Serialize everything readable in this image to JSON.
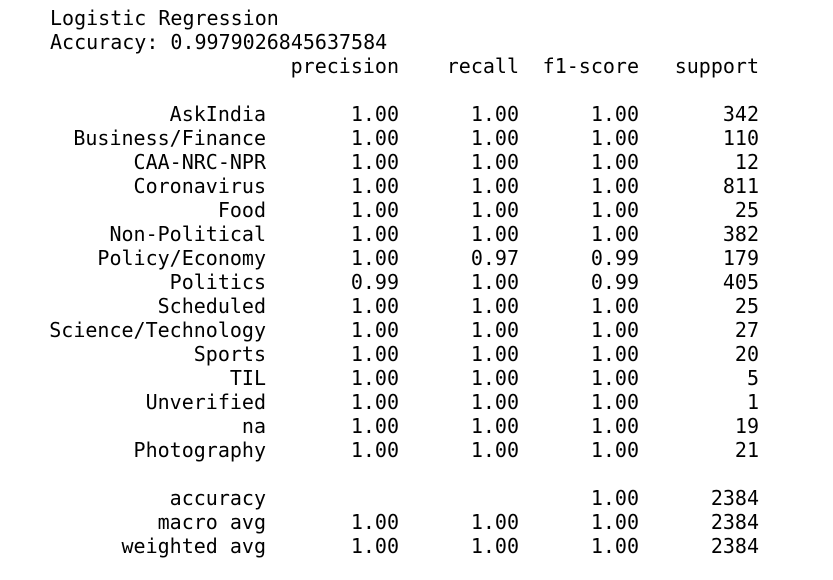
{
  "header": {
    "model_name": "Logistic Regression",
    "accuracy_line": "Accuracy: 0.9979026845637584"
  },
  "columns": {
    "precision": "precision",
    "recall": "recall",
    "f1": "f1-score",
    "support": "support"
  },
  "rows": [
    {
      "label": "AskIndia",
      "precision": "1.00",
      "recall": "1.00",
      "f1": "1.00",
      "support": "342"
    },
    {
      "label": "Business/Finance",
      "precision": "1.00",
      "recall": "1.00",
      "f1": "1.00",
      "support": "110"
    },
    {
      "label": "CAA-NRC-NPR",
      "precision": "1.00",
      "recall": "1.00",
      "f1": "1.00",
      "support": "12"
    },
    {
      "label": "Coronavirus",
      "precision": "1.00",
      "recall": "1.00",
      "f1": "1.00",
      "support": "811"
    },
    {
      "label": "Food",
      "precision": "1.00",
      "recall": "1.00",
      "f1": "1.00",
      "support": "25"
    },
    {
      "label": "Non-Political",
      "precision": "1.00",
      "recall": "1.00",
      "f1": "1.00",
      "support": "382"
    },
    {
      "label": "Policy/Economy",
      "precision": "1.00",
      "recall": "0.97",
      "f1": "0.99",
      "support": "179"
    },
    {
      "label": "Politics",
      "precision": "0.99",
      "recall": "1.00",
      "f1": "0.99",
      "support": "405"
    },
    {
      "label": "Scheduled",
      "precision": "1.00",
      "recall": "1.00",
      "f1": "1.00",
      "support": "25"
    },
    {
      "label": "Science/Technology",
      "precision": "1.00",
      "recall": "1.00",
      "f1": "1.00",
      "support": "27"
    },
    {
      "label": "Sports",
      "precision": "1.00",
      "recall": "1.00",
      "f1": "1.00",
      "support": "20"
    },
    {
      "label": "TIL",
      "precision": "1.00",
      "recall": "1.00",
      "f1": "1.00",
      "support": "5"
    },
    {
      "label": "Unverified",
      "precision": "1.00",
      "recall": "1.00",
      "f1": "1.00",
      "support": "1"
    },
    {
      "label": "na",
      "precision": "1.00",
      "recall": "1.00",
      "f1": "1.00",
      "support": "19"
    },
    {
      "label": "Photography",
      "precision": "1.00",
      "recall": "1.00",
      "f1": "1.00",
      "support": "21"
    }
  ],
  "summary": [
    {
      "label": "accuracy",
      "precision": "",
      "recall": "",
      "f1": "1.00",
      "support": "2384"
    },
    {
      "label": "macro avg",
      "precision": "1.00",
      "recall": "1.00",
      "f1": "1.00",
      "support": "2384"
    },
    {
      "label": "weighted avg",
      "precision": "1.00",
      "recall": "1.00",
      "f1": "1.00",
      "support": "2384"
    }
  ]
}
